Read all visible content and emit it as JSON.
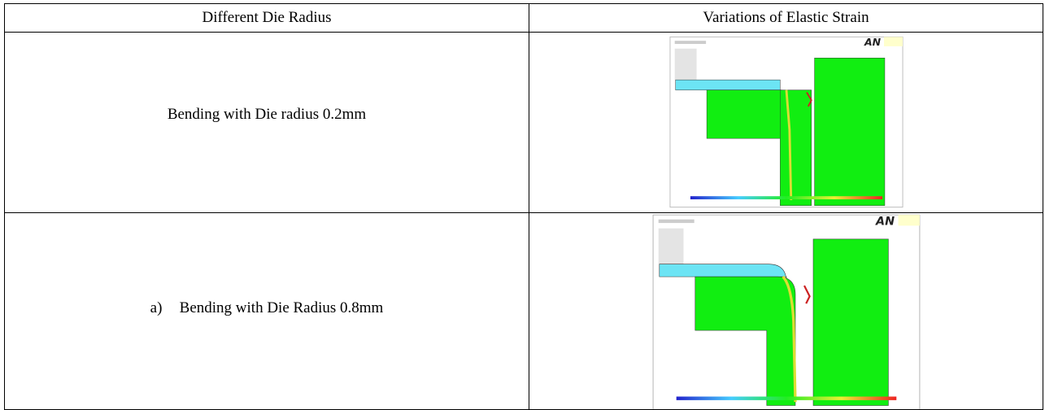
{
  "table": {
    "header": [
      "Different Die Radius",
      "Variations of Elastic Strain"
    ],
    "rows": [
      {
        "text": "Bending with Die radius 0.2mm",
        "image_logo": "AN"
      },
      {
        "marker": "a)",
        "text": "Bending with Die Radius 0.8mm",
        "image_logo": "AN"
      }
    ]
  }
}
